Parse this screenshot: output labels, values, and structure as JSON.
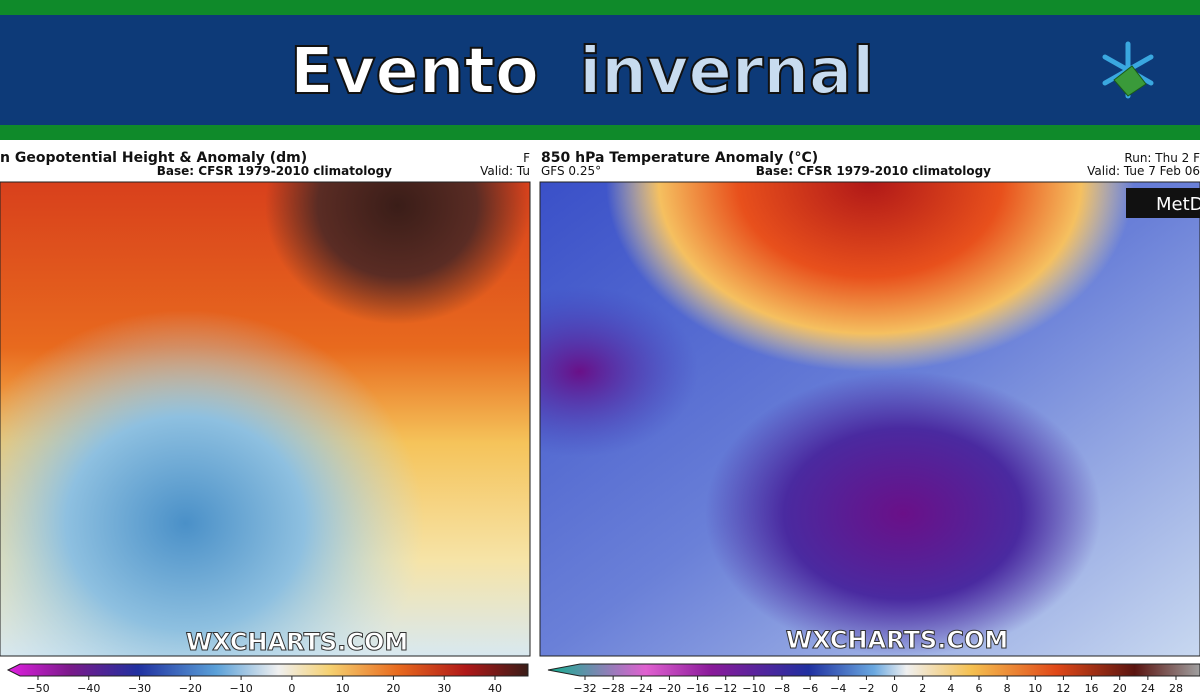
{
  "header": {
    "title_first": "Evento",
    "title_second": "invernal"
  },
  "panels": [
    {
      "title": "n Geopotential Height & Anomaly (dm)",
      "base": "Base: CFSR 1979-2010 climatology",
      "valid": "Valid: Tu",
      "run": "F",
      "watermark": "WXCHARTS.COM",
      "colorbar_ticks": [
        "−50",
        "−40",
        "−30",
        "−20",
        "−10",
        "0",
        "10",
        "20",
        "30",
        "40"
      ]
    },
    {
      "title": "850 hPa Temperature Anomaly (°C)",
      "model": "GFS 0.25°",
      "base": "Base: CFSR 1979-2010 climatology",
      "run": "Run: Thu 2 F",
      "valid": "Valid: Tue 7 Feb 06",
      "watermark": "WXCHARTS.COM",
      "logo": "MetD",
      "colorbar_ticks": [
        "−32",
        "−28",
        "−24",
        "−20",
        "−16",
        "−12",
        "−10",
        "−8",
        "−6",
        "−4",
        "−2",
        "0",
        "2",
        "4",
        "6",
        "8",
        "10",
        "12",
        "16",
        "20",
        "24",
        "28"
      ]
    }
  ]
}
